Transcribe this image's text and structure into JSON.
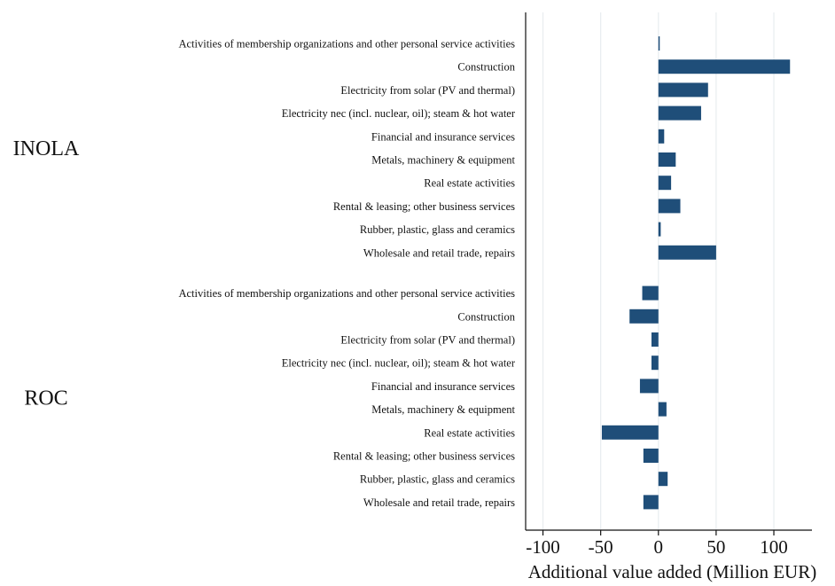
{
  "chart_data": {
    "type": "bar",
    "orientation": "horizontal",
    "xlabel": "Additional value added (Million EUR)",
    "xlim": [
      -115,
      133
    ],
    "xticks": [
      -100,
      -50,
      0,
      50,
      100
    ],
    "xtick_labels": [
      "-100",
      "-50",
      "0",
      "50",
      "100"
    ],
    "grid": true,
    "bar_color": "#1f4e79",
    "groups": [
      {
        "name": "INOLA",
        "categories": [
          "Activities of membership organizations and other personal service activities",
          "Construction",
          "Electricity from solar (PV and thermal)",
          "Electricity nec (incl. nuclear, oil); steam & hot water",
          "Financial and insurance services",
          "Metals, machinery & equipment",
          "Real estate activities",
          "Rental & leasing; other business services",
          "Rubber, plastic, glass and ceramics",
          "Wholesale and retail trade, repairs"
        ],
        "values": [
          1,
          114,
          43,
          37,
          5,
          15,
          11,
          19,
          2,
          50
        ]
      },
      {
        "name": "ROC",
        "categories": [
          "Activities of membership organizations and other personal service activities",
          "Construction",
          "Electricity from solar (PV and thermal)",
          "Electricity nec (incl. nuclear, oil); steam & hot water",
          "Financial and insurance services",
          "Metals, machinery & equipment",
          "Real estate activities",
          "Rental & leasing; other business services",
          "Rubber, plastic, glass and ceramics",
          "Wholesale and retail trade, repairs"
        ],
        "values": [
          -14,
          -25,
          -6,
          -6,
          -16,
          7,
          -49,
          -13,
          8,
          -13
        ]
      }
    ]
  }
}
